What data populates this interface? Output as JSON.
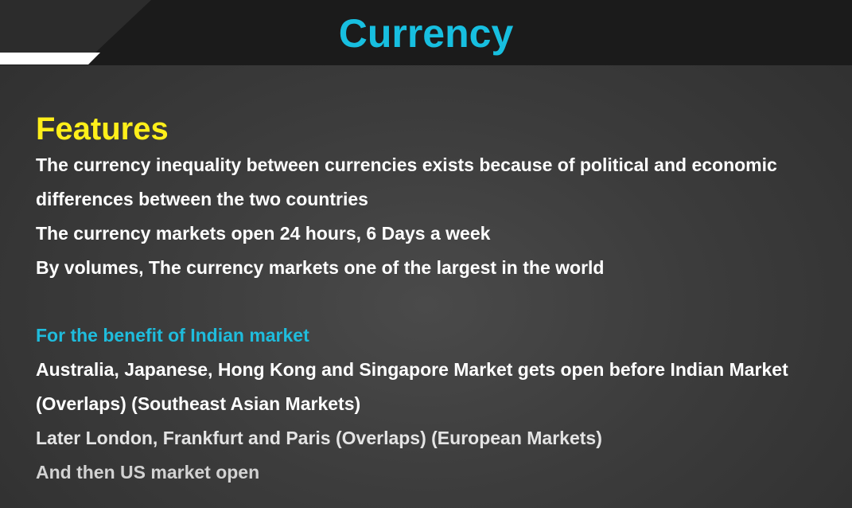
{
  "slide": {
    "title": "Currency"
  },
  "features": {
    "heading": "Features",
    "paragraphs": [
      "The currency inequality between currencies exists because of political and economic differences between the two countries",
      "The currency markets open 24 hours, 6 Days a week",
      "By volumes, The currency markets one of the largest in the world"
    ]
  },
  "benefit": {
    "heading": "For the benefit of Indian market",
    "paragraphs": [
      "Australia, Japanese, Hong Kong and Singapore Market gets open before Indian Market (Overlaps) (Southeast Asian Markets)",
      "Later London, Frankfurt and Paris (Overlaps) (European Markets)",
      "And then US market open"
    ]
  },
  "colors": {
    "title": "#17bfe0",
    "features_heading": "#ffef1a",
    "benefit_heading": "#1fbcdc",
    "body_text": "#ffffff",
    "header_band": "#1b1b1b",
    "background": "#3c3c3c"
  }
}
